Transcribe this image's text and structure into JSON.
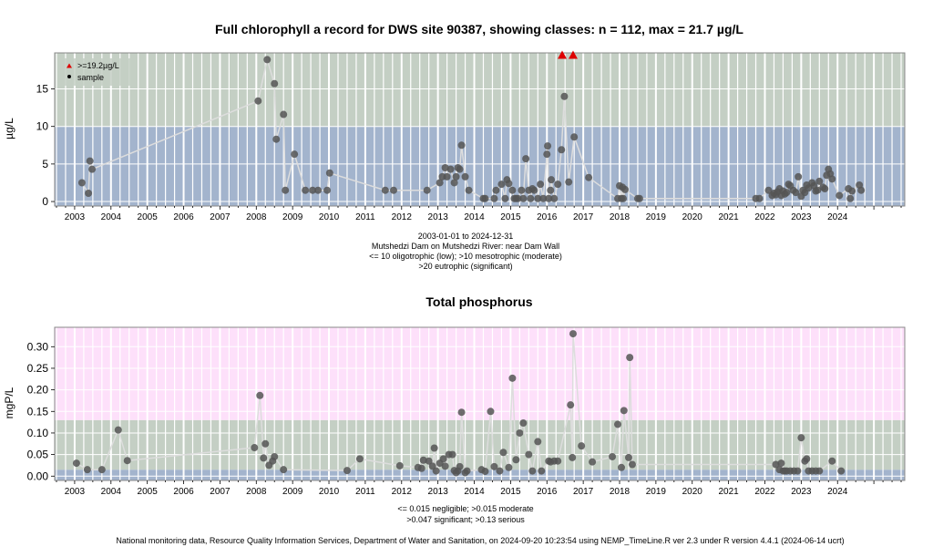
{
  "footer": "National monitoring data, Resource Quality Information Services, Department of Water and Sanitation, on 2024-09-20 10:23:54 using NEMP_TimeLine.R ver 2.3 under R version 4.4.1 (2024-06-14 ucrt)",
  "chart_data": [
    {
      "type": "scatter",
      "title": "Full chlorophyll a record for DWS site 90387, showing classes: n = 112, max = 21.7 µg/L",
      "ylabel": "µg/L",
      "xlim": [
        2002.45,
        2025.85
      ],
      "ylim": [
        -0.6,
        19.8
      ],
      "x_ticks": [
        "2003",
        "2004",
        "2005",
        "2006",
        "2007",
        "2008",
        "2009",
        "2010",
        "2011",
        "2012",
        "2013",
        "2014",
        "2015",
        "2016",
        "2017",
        "2018",
        "2019",
        "2020",
        "2021",
        "2022",
        "2023",
        "2024"
      ],
      "y_ticks": [
        "0",
        "5",
        "10",
        "15"
      ],
      "notes": [
        "2003-01-01 to 2024-12-31",
        "Mutshedzi Dam on Mutshedzi River: near Dam Wall",
        "<= 10 oligotrophic (low); >10 mesotrophic (moderate)",
        ">20 eutrophic (significant)"
      ],
      "legend": {
        "position": "top-left",
        "entries": [
          ">=19.2µg/L",
          "sample"
        ]
      },
      "colors": {
        "background": "#c4cfc4",
        "low_band": "#a3b4cd",
        "grid": "#ffffff",
        "points": "#555555",
        "line": "#dddddd",
        "over": "#dd0000"
      },
      "bands": [
        {
          "from": -0.6,
          "to": 10,
          "color": "#a3b4cd"
        },
        {
          "from": 10,
          "to": 19.8,
          "color": "#c4cfc4"
        }
      ],
      "series": [
        {
          "x": [
            2003.2,
            2003.38,
            2003.42,
            2003.48,
            2008.05,
            2008.3,
            2008.5,
            2008.55,
            2008.75,
            2008.8,
            2009.05,
            2009.35,
            2009.55,
            2009.7,
            2009.95,
            2010.02,
            2011.55,
            2011.78,
            2012.7,
            2013.05,
            2013.12,
            2013.2,
            2013.25,
            2013.35,
            2013.45,
            2013.5,
            2013.55,
            2013.6,
            2013.65,
            2013.75,
            2013.85,
            2014.25,
            2014.3,
            2014.55,
            2014.6,
            2014.75,
            2014.85,
            2014.9,
            2014.95,
            2015.05,
            2015.1,
            2015.15,
            2015.2,
            2015.3,
            2015.35,
            2015.42,
            2015.5,
            2015.55,
            2015.6,
            2015.65,
            2015.75,
            2015.82,
            2015.9,
            2016.0,
            2016.02,
            2016.05,
            2016.1,
            2016.12,
            2016.2,
            2016.3,
            2016.4,
            2016.48,
            2016.6,
            2016.75,
            2017.15,
            2017.95,
            2018.0,
            2018.05,
            2018.08,
            2018.1,
            2018.15,
            2018.5,
            2018.55,
            2021.75,
            2021.85,
            2022.1,
            2022.2,
            2022.25,
            2022.3,
            2022.35,
            2022.4,
            2022.45,
            2022.5,
            2022.55,
            2022.6,
            2022.65,
            2022.7,
            2022.78,
            2022.85,
            2022.92,
            2023.0,
            2023.05,
            2023.1,
            2023.15,
            2023.2,
            2023.3,
            2023.35,
            2023.4,
            2023.45,
            2023.5,
            2023.6,
            2023.65,
            2023.7,
            2023.75,
            2023.8,
            2023.85,
            2024.05,
            2024.3,
            2024.35,
            2024.4,
            2024.6,
            2024.65
          ],
          "y": [
            2.5,
            1.1,
            5.4,
            4.3,
            13.4,
            18.9,
            15.7,
            8.3,
            11.6,
            1.5,
            6.3,
            1.5,
            1.5,
            1.5,
            1.5,
            3.8,
            1.5,
            1.5,
            1.5,
            2.5,
            3.3,
            4.5,
            3.3,
            4.3,
            2.5,
            3.3,
            4.5,
            4.3,
            7.5,
            3.3,
            1.5,
            0.4,
            0.4,
            0.4,
            1.5,
            2.3,
            0.4,
            2.9,
            2.4,
            1.5,
            0.4,
            0.4,
            0.4,
            1.5,
            0.4,
            5.7,
            1.5,
            0.4,
            1.7,
            1.5,
            0.4,
            2.3,
            0.4,
            6.3,
            7.4,
            0.4,
            1.5,
            2.9,
            0.4,
            2.3,
            6.9,
            14.0,
            2.6,
            8.6,
            3.2,
            0.4,
            2.1,
            0.4,
            1.9,
            0.4,
            1.6,
            0.4,
            0.4,
            0.4,
            0.4,
            1.5,
            0.8,
            1.1,
            0.9,
            1.3,
            1.7,
            0.8,
            1.4,
            1.0,
            1.2,
            2.3,
            2.1,
            1.5,
            1.2,
            3.3,
            0.7,
            1.5,
            1.2,
            2.2,
            1.8,
            2.5,
            2.1,
            1.4,
            1.5,
            2.7,
            1.9,
            1.7,
            3.5,
            4.3,
            3.7,
            3.0,
            0.8,
            1.7,
            0.4,
            1.4,
            2.2,
            1.5
          ]
        },
        {
          "name": ">=19.2µg/L",
          "x": [
            2016.42,
            2016.72
          ],
          "y": [
            19.5,
            19.5
          ]
        }
      ]
    },
    {
      "type": "scatter",
      "title": "Total phosphorus",
      "ylabel": "mgP/L",
      "xlim": [
        2002.45,
        2025.85
      ],
      "ylim": [
        -0.01,
        0.345
      ],
      "x_ticks": [
        "2003",
        "2004",
        "2005",
        "2006",
        "2007",
        "2008",
        "2009",
        "2010",
        "2011",
        "2012",
        "2013",
        "2014",
        "2015",
        "2016",
        "2017",
        "2018",
        "2019",
        "2020",
        "2021",
        "2022",
        "2023",
        "2024"
      ],
      "y_ticks": [
        "0.00",
        "0.05",
        "0.10",
        "0.15",
        "0.20",
        "0.25",
        "0.30"
      ],
      "notes": [
        "<= 0.015 negligible; >0.015 moderate",
        ">0.047 significant; >0.13 serious"
      ],
      "colors": {
        "negligible": "#a3b4cd",
        "moderate": "#c4cfc4",
        "significant": "#c4cfc4",
        "serious": "#fde0fa",
        "grid": "#ffffff",
        "points": "#555555",
        "line": "#dddddd"
      },
      "bands": [
        {
          "from": -0.01,
          "to": 0.015,
          "color": "#a3b4cd"
        },
        {
          "from": 0.015,
          "to": 0.13,
          "color": "#c4cfc4"
        },
        {
          "from": 0.13,
          "to": 0.345,
          "color": "#fde0fa"
        }
      ],
      "series": [
        {
          "x": [
            2003.05,
            2003.35,
            2003.75,
            2004.2,
            2004.45,
            2007.95,
            2008.1,
            2008.2,
            2008.25,
            2008.35,
            2008.45,
            2008.5,
            2008.75,
            2010.5,
            2010.85,
            2011.95,
            2012.45,
            2012.55,
            2012.6,
            2012.75,
            2012.85,
            2012.9,
            2012.95,
            2013.05,
            2013.15,
            2013.2,
            2013.3,
            2013.4,
            2013.45,
            2013.5,
            2013.55,
            2013.6,
            2013.65,
            2013.75,
            2013.8,
            2014.2,
            2014.3,
            2014.45,
            2014.55,
            2014.7,
            2014.8,
            2014.95,
            2015.05,
            2015.15,
            2015.25,
            2015.35,
            2015.5,
            2015.6,
            2015.75,
            2015.85,
            2016.05,
            2016.1,
            2016.2,
            2016.3,
            2016.65,
            2016.7,
            2016.72,
            2016.95,
            2017.25,
            2017.8,
            2017.95,
            2018.05,
            2018.12,
            2018.25,
            2018.28,
            2018.35,
            2022.3,
            2022.4,
            2022.45,
            2022.5,
            2022.55,
            2022.6,
            2022.7,
            2022.8,
            2022.9,
            2023.0,
            2023.1,
            2023.15,
            2023.2,
            2023.3,
            2023.4,
            2023.5,
            2023.85,
            2024.1
          ],
          "y": [
            0.03,
            0.015,
            0.015,
            0.107,
            0.036,
            0.066,
            0.187,
            0.042,
            0.075,
            0.025,
            0.035,
            0.045,
            0.015,
            0.013,
            0.04,
            0.024,
            0.02,
            0.018,
            0.037,
            0.035,
            0.023,
            0.065,
            0.012,
            0.03,
            0.04,
            0.023,
            0.05,
            0.05,
            0.013,
            0.008,
            0.012,
            0.022,
            0.148,
            0.008,
            0.012,
            0.015,
            0.011,
            0.15,
            0.022,
            0.012,
            0.055,
            0.02,
            0.227,
            0.038,
            0.1,
            0.123,
            0.05,
            0.012,
            0.08,
            0.012,
            0.035,
            0.033,
            0.035,
            0.035,
            0.165,
            0.043,
            0.33,
            0.07,
            0.033,
            0.045,
            0.12,
            0.02,
            0.152,
            0.043,
            0.275,
            0.027,
            0.027,
            0.015,
            0.03,
            0.012,
            0.012,
            0.012,
            0.012,
            0.012,
            0.012,
            0.089,
            0.035,
            0.04,
            0.012,
            0.012,
            0.012,
            0.012,
            0.035,
            0.012
          ]
        }
      ]
    }
  ]
}
